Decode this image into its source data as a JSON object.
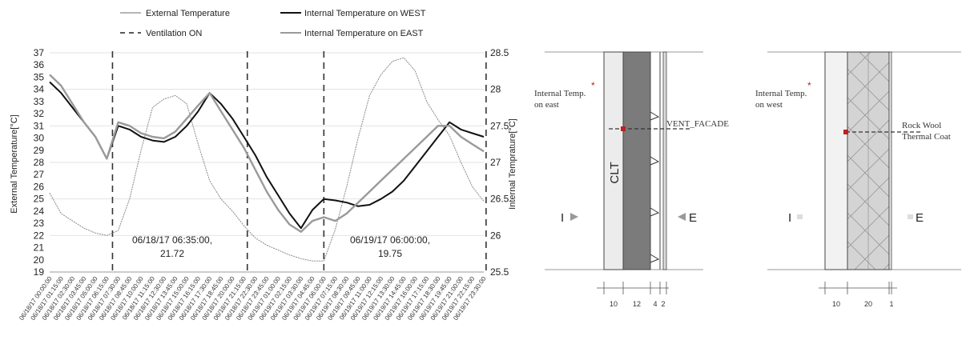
{
  "chart_data": {
    "type": "line",
    "title": "",
    "legend": {
      "external": "External Temperature",
      "ventilation": "Ventilation ON",
      "west": "Internal Temperature on WEST",
      "east": "Internal Temperature on EAST"
    },
    "ylabel_left": "External Temperature[°C]",
    "ylabel_right": "Internal Temprature[°C]",
    "ylim_left": [
      19,
      37
    ],
    "ylim_right": [
      25.5,
      28.5
    ],
    "yticks_left": [
      "19",
      "20",
      "21",
      "22",
      "23",
      "24",
      "25",
      "26",
      "27",
      "28",
      "29",
      "30",
      "31",
      "32",
      "33",
      "34",
      "35",
      "36",
      "37"
    ],
    "yticks_right": [
      "25.5",
      "26",
      "26.5",
      "27",
      "27.5",
      "28",
      "28.5"
    ],
    "x": [
      "06/18/17 00:00:00",
      "06/18/17 01:15:00",
      "06/18/17 02:30:00",
      "06/18/17 03:45:00",
      "06/18/17 05:00:00",
      "06/18/17 06:15:00",
      "06/18/17 07:30:00",
      "06/18/17 08:45:00",
      "06/18/17 10:00:00",
      "06/18/17 11:15:00",
      "06/18/17 12:30:00",
      "06/18/17 13:45:00",
      "06/18/17 15:00:00",
      "06/18/17 16:15:00",
      "06/18/17 17:30:00",
      "06/18/17 18:45:00",
      "06/18/17 20:00:00",
      "06/18/17 21:15:00",
      "06/18/17 22:30:00",
      "06/18/17 23:45:00",
      "06/19/17 01:00:00",
      "06/19/17 02:15:00",
      "06/19/17 03:30:00",
      "06/19/17 04:45:00",
      "06/19/17 06:00:00",
      "06/19/17 07:15:00",
      "06/19/17 08:30:00",
      "06/19/17 09:45:00",
      "06/19/17 11:00:00",
      "06/19/17 12:15:00",
      "06/19/17 13:30:00",
      "06/19/17 14:45:00",
      "06/19/17 16:00:00",
      "06/19/17 17:15:00",
      "06/19/17 18:30:00",
      "06/19/17 19:45:00",
      "06/19/17 21:00:00",
      "06/19/17 22:15:00",
      "06/19/17 23:30:00"
    ],
    "ventilation_on_index": [
      5.5,
      17.3,
      24,
      38.2
    ],
    "series": [
      {
        "name": "External Temperature",
        "axis": "left",
        "color": "#8a8a8a",
        "values": [
          25.5,
          23.8,
          23.2,
          22.6,
          22.2,
          22.0,
          22.4,
          25.0,
          29.0,
          32.5,
          33.2,
          33.5,
          32.8,
          29.5,
          26.5,
          25.0,
          24.0,
          22.8,
          21.8,
          21.2,
          20.8,
          20.4,
          20.1,
          19.9,
          19.9,
          22.5,
          26.0,
          30.0,
          33.5,
          35.2,
          36.3,
          36.6,
          35.5,
          33.0,
          31.5,
          30.2,
          28.0,
          26.0,
          24.8
        ]
      },
      {
        "name": "Internal Temperature on WEST",
        "axis": "right",
        "color": "#111111",
        "values": [
          28.1,
          27.95,
          27.75,
          27.55,
          27.35,
          27.05,
          27.5,
          27.45,
          27.35,
          27.3,
          27.28,
          27.35,
          27.5,
          27.7,
          27.95,
          27.8,
          27.6,
          27.35,
          27.1,
          26.8,
          26.55,
          26.3,
          26.1,
          26.35,
          26.5,
          26.48,
          26.45,
          26.4,
          26.42,
          26.5,
          26.6,
          26.75,
          26.95,
          27.15,
          27.35,
          27.55,
          27.45,
          27.4,
          27.35
        ]
      },
      {
        "name": "Internal Temperature on EAST",
        "axis": "right",
        "color": "#9a9a9a",
        "values": [
          28.2,
          28.05,
          27.8,
          27.55,
          27.35,
          27.05,
          27.55,
          27.5,
          27.4,
          27.35,
          27.33,
          27.42,
          27.6,
          27.78,
          27.95,
          27.7,
          27.45,
          27.2,
          26.9,
          26.6,
          26.35,
          26.15,
          26.05,
          26.2,
          26.25,
          26.2,
          26.3,
          26.45,
          26.6,
          26.75,
          26.9,
          27.05,
          27.2,
          27.35,
          27.5,
          27.5,
          27.35,
          27.25,
          27.15
        ]
      }
    ],
    "annotations": [
      {
        "line1": "06/18/17 06:35:00,",
        "line2": "21.72"
      },
      {
        "line1": "06/19/17 06:00:00,",
        "line2": "19.75"
      }
    ]
  },
  "diagram_east": {
    "label_internal": "Internal Temp.",
    "label_internal_2": "on east",
    "star": "*",
    "layer_label": "CLT",
    "facade_label": "VENT_FACADE",
    "left_marker": "I",
    "right_marker": "E",
    "dims": [
      "10",
      "12",
      "4",
      "2"
    ]
  },
  "diagram_west": {
    "label_internal": "Internal Temp.",
    "label_internal_2": "on west",
    "star": "*",
    "coat_label_1": "Rock Wool",
    "coat_label_2": "Thermal Coat",
    "left_marker": "I",
    "right_marker": "E",
    "dims": [
      "10",
      "20",
      "1"
    ]
  }
}
